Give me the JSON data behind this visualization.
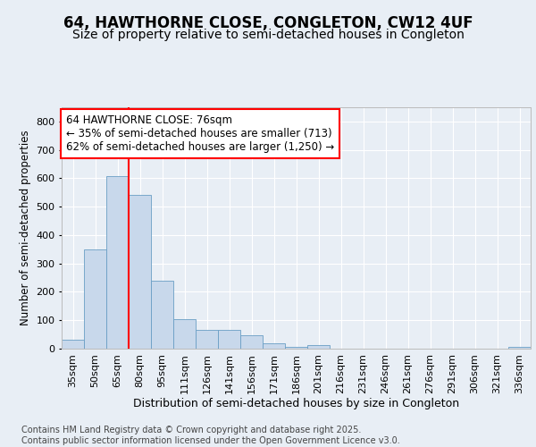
{
  "title1": "64, HAWTHORNE CLOSE, CONGLETON, CW12 4UF",
  "title2": "Size of property relative to semi-detached houses in Congleton",
  "xlabel": "Distribution of semi-detached houses by size in Congleton",
  "ylabel": "Number of semi-detached properties",
  "footer": "Contains HM Land Registry data © Crown copyright and database right 2025.\nContains public sector information licensed under the Open Government Licence v3.0.",
  "categories": [
    "35sqm",
    "50sqm",
    "65sqm",
    "80sqm",
    "95sqm",
    "111sqm",
    "126sqm",
    "141sqm",
    "156sqm",
    "171sqm",
    "186sqm",
    "201sqm",
    "216sqm",
    "231sqm",
    "246sqm",
    "261sqm",
    "276sqm",
    "291sqm",
    "306sqm",
    "321sqm",
    "336sqm"
  ],
  "values": [
    30,
    350,
    609,
    540,
    238,
    103,
    67,
    67,
    47,
    20,
    5,
    13,
    0,
    0,
    0,
    0,
    0,
    0,
    0,
    0,
    5
  ],
  "bar_color": "#c8d8eb",
  "bar_edge_color": "#6a9ec5",
  "red_line_x": 2.5,
  "annotation_line1": "64 HAWTHORNE CLOSE: 76sqm",
  "annotation_line2": "← 35% of semi-detached houses are smaller (713)",
  "annotation_line3": "62% of semi-detached houses are larger (1,250) →",
  "ylim": [
    0,
    850
  ],
  "yticks": [
    0,
    100,
    200,
    300,
    400,
    500,
    600,
    700,
    800
  ],
  "background_color": "#e8eef5",
  "plot_bg_color": "#e8eef5",
  "grid_color": "#ffffff",
  "title1_fontsize": 12,
  "title2_fontsize": 10,
  "annotation_fontsize": 8.5,
  "ylabel_fontsize": 8.5,
  "xlabel_fontsize": 9,
  "tick_fontsize": 8,
  "footer_fontsize": 7
}
